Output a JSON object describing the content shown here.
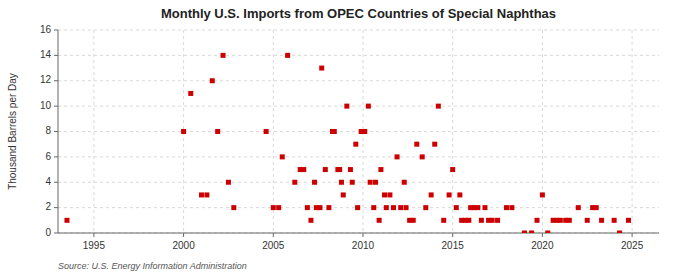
{
  "chart_data": {
    "type": "scatter",
    "title": "Monthly U.S. Imports from OPEC Countries of Special Naphthas",
    "ylabel": "Thousand Barrels per Day",
    "source": "Source: U.S. Energy Information Administration",
    "color": "#cc0000",
    "marker": "square",
    "grid": true,
    "xlim": [
      1993.0,
      2026.5
    ],
    "xticks": [
      1995,
      2000,
      2005,
      2010,
      2015,
      2020,
      2025
    ],
    "ylim": [
      0,
      16
    ],
    "yticks": [
      0,
      2,
      4,
      6,
      8,
      10,
      12,
      14,
      16
    ],
    "x": [
      1993.5,
      2000.0,
      2000.4,
      2001.0,
      2001.3,
      2001.6,
      2001.9,
      2002.2,
      2002.5,
      2002.8,
      2004.6,
      2005.0,
      2005.3,
      2005.5,
      2005.8,
      2006.2,
      2006.5,
      2006.7,
      2006.9,
      2007.1,
      2007.3,
      2007.4,
      2007.6,
      2007.7,
      2007.9,
      2008.1,
      2008.3,
      2008.4,
      2008.6,
      2008.7,
      2008.8,
      2008.9,
      2009.1,
      2009.3,
      2009.4,
      2009.6,
      2009.7,
      2009.9,
      2010.1,
      2010.3,
      2010.4,
      2010.6,
      2010.7,
      2010.9,
      2011.0,
      2011.2,
      2011.3,
      2011.5,
      2011.7,
      2011.9,
      2012.1,
      2012.3,
      2012.4,
      2012.6,
      2012.8,
      2013.0,
      2013.3,
      2013.5,
      2013.8,
      2014.0,
      2014.2,
      2014.5,
      2014.8,
      2015.0,
      2015.2,
      2015.4,
      2015.5,
      2015.7,
      2015.9,
      2016.0,
      2016.2,
      2016.4,
      2016.6,
      2016.8,
      2017.0,
      2017.2,
      2017.5,
      2018.0,
      2018.3,
      2019.0,
      2019.4,
      2019.7,
      2020.0,
      2020.3,
      2020.6,
      2020.8,
      2021.0,
      2021.3,
      2021.5,
      2022.0,
      2022.5,
      2022.8,
      2023.0,
      2023.3,
      2024.0,
      2024.3,
      2024.8
    ],
    "values": [
      1,
      8,
      11,
      3,
      3,
      12,
      8,
      14,
      4,
      2,
      8,
      2,
      2,
      6,
      14,
      4,
      5,
      5,
      2,
      1,
      4,
      2,
      2,
      13,
      5,
      2,
      8,
      8,
      5,
      5,
      4,
      3,
      10,
      5,
      4,
      7,
      2,
      8,
      8,
      10,
      4,
      2,
      4,
      1,
      5,
      3,
      2,
      3,
      2,
      6,
      2,
      4,
      2,
      1,
      1,
      7,
      6,
      2,
      3,
      7,
      10,
      1,
      3,
      5,
      2,
      3,
      1,
      1,
      1,
      2,
      2,
      2,
      1,
      2,
      1,
      1,
      1,
      2,
      2,
      0,
      0,
      1,
      3,
      0,
      1,
      1,
      1,
      1,
      1,
      2,
      1,
      2,
      2,
      1,
      1,
      0,
      1
    ]
  }
}
